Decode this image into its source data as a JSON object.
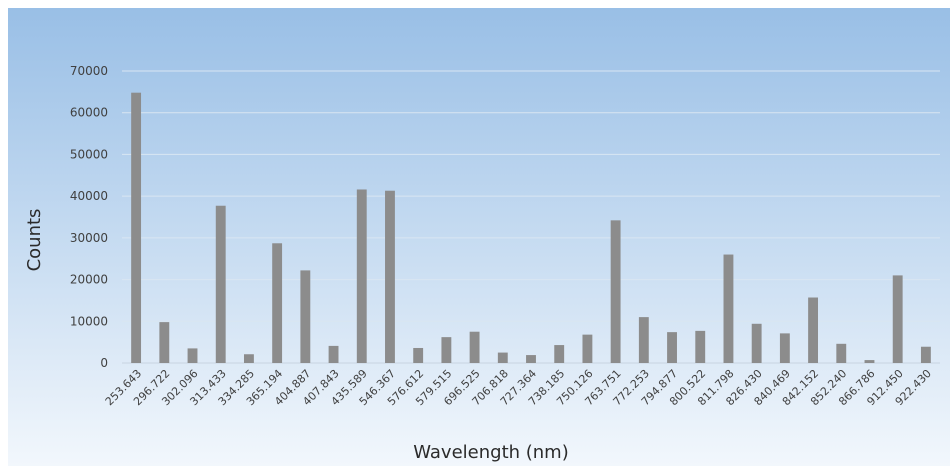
{
  "chart_data": {
    "type": "bar",
    "title": "",
    "xlabel": "Wavelength (nm)",
    "ylabel": "Counts",
    "ylim": [
      0,
      70000
    ],
    "yticks": [
      0,
      10000,
      20000,
      30000,
      40000,
      50000,
      60000,
      70000
    ],
    "grid": true,
    "bar_color": "#8c8c8c",
    "background_gradient": [
      "#99bfe6",
      "#f2f7fc"
    ],
    "categories": [
      "253.643",
      "296.722",
      "302.096",
      "313.433",
      "334.285",
      "365.194",
      "404.887",
      "407.843",
      "435.589",
      "546.367",
      "576.612",
      "579.515",
      "696.525",
      "706.818",
      "727.364",
      "738.185",
      "750.126",
      "763.751",
      "772.253",
      "794.877",
      "800.522",
      "811.798",
      "826.430",
      "840.469",
      "842.152",
      "852.240",
      "866.786",
      "912.450",
      "922.430"
    ],
    "values": [
      64800,
      9800,
      3500,
      37700,
      2100,
      28700,
      22200,
      4100,
      41600,
      41300,
      3600,
      6200,
      7500,
      2500,
      1900,
      4300,
      6800,
      34200,
      11000,
      7400,
      7700,
      26000,
      9400,
      7100,
      15700,
      4600,
      700,
      21000,
      3900
    ]
  }
}
